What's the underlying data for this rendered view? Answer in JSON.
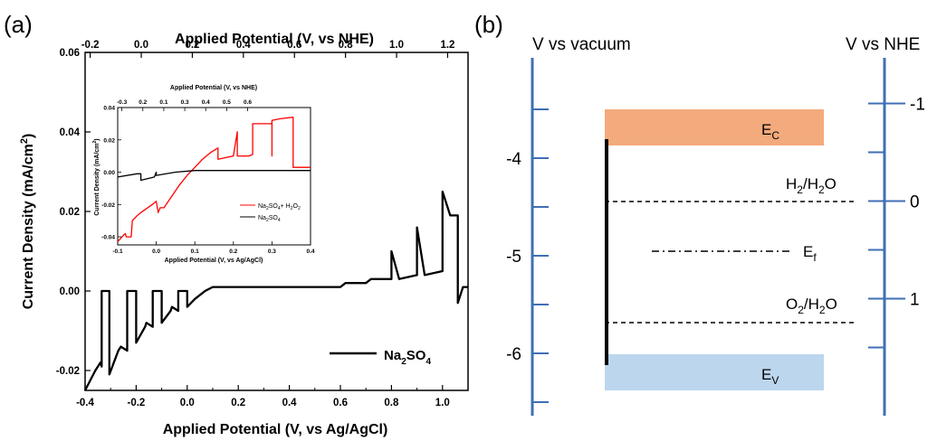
{
  "panel_a_tag": "(a)",
  "panel_b_tag": "(b)",
  "chart_data": [
    {
      "type": "line",
      "panel": "(a)",
      "xlabel": "Applied Potential (V, vs Ag/AgCl)",
      "x2label": "Applied Potential (V, vs NHE)",
      "ylabel": "Current Density (mA/cm²)",
      "xlim": [
        -0.4,
        1.1
      ],
      "ylim": [
        -0.025,
        0.06
      ],
      "x2lim": [
        -0.22,
        1.28
      ],
      "xticks": [
        "-0.4",
        "-0.2",
        "0.0",
        "0.2",
        "0.4",
        "0.6",
        "0.8",
        "1.0"
      ],
      "x2ticks": [
        "-0.2",
        "0.0",
        "0.2",
        "0.4",
        "0.6",
        "0.8",
        "1.0",
        "1.2"
      ],
      "yticks": [
        "-0.02",
        "0.00",
        "0.02",
        "0.04",
        "0.06"
      ],
      "legend": {
        "position": "bottom-right",
        "entry_main": "Na",
        "entry_sub": "2",
        "entry_rest": "SO",
        "entry_sub2": "4"
      },
      "series": [
        {
          "name": "Na2SO4",
          "color": "#000000",
          "x": [
            -0.4,
            -0.36,
            -0.34,
            -0.335,
            -0.335,
            -0.31,
            -0.305,
            -0.305,
            -0.27,
            -0.26,
            -0.235,
            -0.235,
            -0.205,
            -0.2,
            -0.2,
            -0.165,
            -0.16,
            -0.135,
            -0.135,
            -0.105,
            -0.1,
            -0.1,
            -0.065,
            -0.06,
            -0.035,
            -0.035,
            -0.005,
            0.0,
            0.0,
            0.03,
            0.07,
            0.1,
            0.2,
            0.3,
            0.4,
            0.5,
            0.6,
            0.62,
            0.7,
            0.72,
            0.8,
            0.8,
            0.83,
            0.9,
            0.9,
            0.93,
            1.0,
            1.0,
            1.03,
            1.06,
            1.06,
            1.08,
            1.1
          ],
          "y": [
            -0.025,
            -0.02,
            -0.018,
            -0.019,
            0.0,
            0.0,
            0.0,
            -0.021,
            -0.015,
            -0.014,
            -0.015,
            0.0,
            0.0,
            0.0,
            -0.013,
            -0.009,
            -0.008,
            -0.009,
            0.0,
            0.0,
            0.0,
            -0.008,
            -0.005,
            -0.004,
            -0.005,
            0.0,
            0.0,
            0.0,
            -0.004,
            -0.002,
            0.0,
            0.001,
            0.001,
            0.001,
            0.001,
            0.001,
            0.001,
            0.002,
            0.002,
            0.003,
            0.003,
            0.01,
            0.003,
            0.004,
            0.016,
            0.004,
            0.005,
            0.025,
            0.019,
            0.019,
            -0.003,
            0.001,
            0.001
          ]
        }
      ],
      "inset": {
        "xlabel": "Applied Potential (V, vs Ag/AgCl)",
        "x2label": "Applied Potential (V, vs NHE)",
        "ylabel": "Current Density (mA/cm²)",
        "xlim": [
          -0.1,
          0.4
        ],
        "ylim": [
          -0.045,
          0.04
        ],
        "x2lim": [
          -0.32,
          0.6
        ],
        "xticks": [
          "-0.1",
          "0.0",
          "0.1",
          "0.2",
          "0.3",
          "0.4"
        ],
        "x2ticks": [
          "-0.3",
          "0.2",
          "0.1",
          "0.3",
          "0.4",
          "0.5",
          "0.6"
        ],
        "x2tick_pos": [
          -0.3,
          -0.2,
          -0.1,
          0.0,
          0.1,
          0.2,
          0.3
        ],
        "yticks": [
          "-0.04",
          "-0.02",
          "0.00",
          "0.02",
          "0.04"
        ],
        "legend": {
          "position": "center-right",
          "entry1": {
            "a": "Na",
            "s1": "2",
            "b": "SO",
            "s2": "4",
            "c": "+ H",
            "s3": "2",
            "d": "O",
            "s4": "2"
          },
          "entry2": {
            "a": "Na",
            "s1": "2",
            "b": "SO",
            "s2": "4"
          }
        },
        "series": [
          {
            "name": "Na2SO4 + H2O2",
            "color": "#ff0000",
            "x": [
              -0.1,
              -0.085,
              -0.08,
              -0.078,
              -0.065,
              -0.062,
              -0.05,
              -0.04,
              -0.01,
              0.0,
              0.005,
              0.01,
              0.02,
              0.04,
              0.06,
              0.08,
              0.1,
              0.12,
              0.14,
              0.16,
              0.16,
              0.2,
              0.21,
              0.21,
              0.24,
              0.25,
              0.25,
              0.3,
              0.3,
              0.3,
              0.32,
              0.355,
              0.355,
              0.37,
              0.4
            ],
            "y": [
              -0.043,
              -0.039,
              -0.038,
              -0.04,
              -0.04,
              -0.03,
              -0.027,
              -0.025,
              -0.02,
              -0.018,
              -0.025,
              -0.022,
              -0.022,
              -0.015,
              -0.008,
              -0.002,
              0.003,
              0.008,
              0.012,
              0.015,
              0.008,
              0.01,
              0.025,
              0.01,
              0.01,
              0.011,
              0.03,
              0.03,
              0.01,
              0.032,
              0.033,
              0.034,
              0.003,
              0.003,
              0.003
            ]
          },
          {
            "name": "Na2SO4",
            "color": "#000000",
            "x": [
              -0.1,
              -0.05,
              -0.04,
              -0.04,
              -0.005,
              0.0,
              0.0,
              0.05,
              0.1,
              0.15,
              0.2,
              0.25,
              0.3,
              0.35,
              0.4
            ],
            "y": [
              -0.003,
              -0.001,
              -0.001,
              -0.005,
              -0.003,
              0.0,
              -0.002,
              0.0,
              0.001,
              0.001,
              0.001,
              0.001,
              0.001,
              0.001,
              0.001
            ]
          }
        ]
      }
    },
    {
      "type": "diagram",
      "panel": "(b)",
      "left_axis_title": "V vs vacuum",
      "right_axis_title": "V vs NHE",
      "left_ticks": [
        "-4",
        "-5",
        "-6"
      ],
      "left_tick_values": [
        -4,
        -5,
        -6
      ],
      "right_ticks": [
        "-1",
        "0",
        "1"
      ],
      "right_tick_values": [
        -1,
        0,
        1
      ],
      "vacuum_range": [
        -3.5,
        -6.5
      ],
      "band_ec": {
        "label": "E",
        "sub": "C",
        "top": -3.5,
        "bottom": -3.9,
        "color": "#f3aa7c"
      },
      "band_ev": {
        "label": "E",
        "sub": "V",
        "top": -6.05,
        "bottom": -6.4,
        "color": "#bcd6ee"
      },
      "levels": [
        {
          "label": "H",
          "s1": "2",
          "mid": "/H",
          "s2": "2",
          "end": "O",
          "value": -4.45,
          "style": "dashed"
        },
        {
          "label": "E",
          "s1": "f",
          "mid": "",
          "s2": "",
          "end": "",
          "value": -4.98,
          "style": "dashdot"
        },
        {
          "label": "O",
          "s1": "2",
          "mid": "/H",
          "s2": "2",
          "end": "O",
          "value": -5.7,
          "style": "dashed"
        }
      ],
      "bar_range": [
        -3.85,
        -6.15
      ],
      "axis_color": "#3f6fb5"
    }
  ]
}
